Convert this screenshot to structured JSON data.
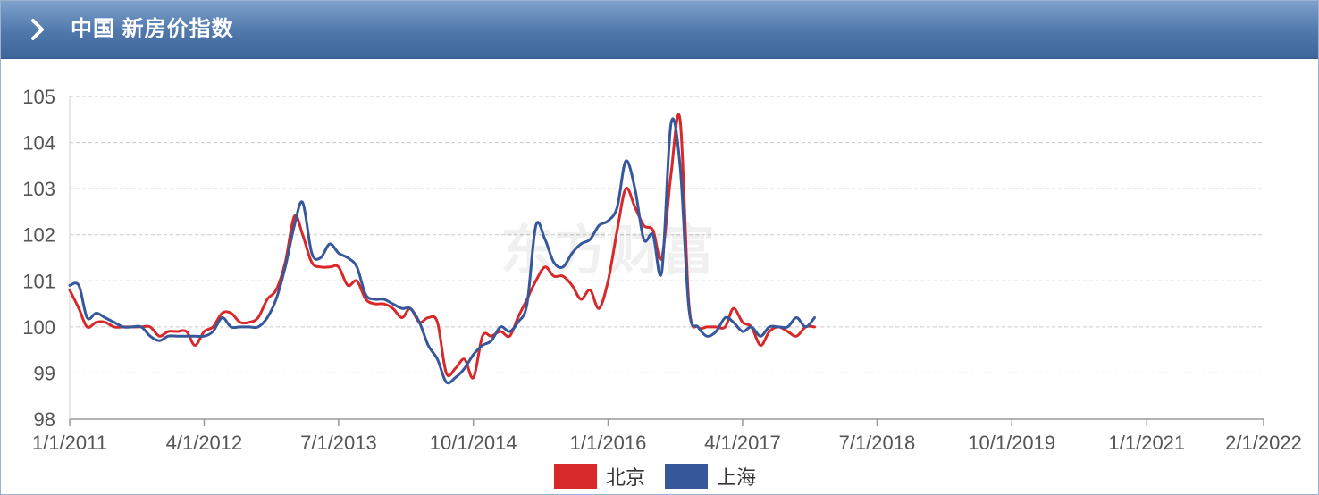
{
  "header": {
    "title": "中国 新房价指数"
  },
  "legend": [
    {
      "label": "北京",
      "color": "#d7282a"
    },
    {
      "label": "上海",
      "color": "#36589b"
    }
  ],
  "watermark": "东方财富",
  "chart_data": {
    "type": "line",
    "title": "中国 新房价指数",
    "xlabel": "",
    "ylabel": "",
    "ylim": [
      98,
      105
    ],
    "yticks": [
      98,
      99,
      100,
      101,
      102,
      103,
      104,
      105
    ],
    "xlim": [
      "2011-01-01",
      "2022-02-01"
    ],
    "xticks": [
      "1/1/2011",
      "4/1/2012",
      "7/1/2013",
      "10/1/2014",
      "1/1/2016",
      "4/1/2017",
      "7/1/2018",
      "10/1/2019",
      "1/1/2021",
      "2/1/2022"
    ],
    "xtick_dates": [
      "2011-01-01",
      "2012-04-01",
      "2013-07-01",
      "2014-10-01",
      "2016-01-01",
      "2017-04-01",
      "2018-07-01",
      "2019-10-01",
      "2021-01-01",
      "2022-02-01"
    ],
    "grid": true,
    "legend_position": "bottom",
    "series": [
      {
        "name": "北京",
        "color": "#d7282a",
        "points": [
          [
            "2011-01-01",
            100.8
          ],
          [
            "2011-02-01",
            100.4
          ],
          [
            "2011-03-01",
            100.0
          ],
          [
            "2011-04-01",
            100.1
          ],
          [
            "2011-05-01",
            100.1
          ],
          [
            "2011-06-01",
            100.0
          ],
          [
            "2011-07-01",
            100.0
          ],
          [
            "2011-08-01",
            100.0
          ],
          [
            "2011-09-01",
            100.0
          ],
          [
            "2011-10-01",
            100.0
          ],
          [
            "2011-11-01",
            99.8
          ],
          [
            "2011-12-01",
            99.9
          ],
          [
            "2012-01-01",
            99.9
          ],
          [
            "2012-02-01",
            99.9
          ],
          [
            "2012-03-01",
            99.6
          ],
          [
            "2012-04-01",
            99.9
          ],
          [
            "2012-05-01",
            100.0
          ],
          [
            "2012-06-01",
            100.3
          ],
          [
            "2012-07-01",
            100.3
          ],
          [
            "2012-08-01",
            100.1
          ],
          [
            "2012-09-01",
            100.1
          ],
          [
            "2012-10-01",
            100.2
          ],
          [
            "2012-11-01",
            100.6
          ],
          [
            "2012-12-01",
            100.8
          ],
          [
            "2013-01-01",
            101.4
          ],
          [
            "2013-02-01",
            102.4
          ],
          [
            "2013-03-01",
            102.0
          ],
          [
            "2013-04-01",
            101.4
          ],
          [
            "2013-05-01",
            101.3
          ],
          [
            "2013-06-01",
            101.3
          ],
          [
            "2013-07-01",
            101.3
          ],
          [
            "2013-08-01",
            100.9
          ],
          [
            "2013-09-01",
            101.0
          ],
          [
            "2013-10-01",
            100.6
          ],
          [
            "2013-11-01",
            100.5
          ],
          [
            "2013-12-01",
            100.5
          ],
          [
            "2014-01-01",
            100.4
          ],
          [
            "2014-02-01",
            100.2
          ],
          [
            "2014-03-01",
            100.4
          ],
          [
            "2014-04-01",
            100.1
          ],
          [
            "2014-05-01",
            100.2
          ],
          [
            "2014-06-01",
            100.1
          ],
          [
            "2014-07-01",
            99.0
          ],
          [
            "2014-08-01",
            99.1
          ],
          [
            "2014-09-01",
            99.3
          ],
          [
            "2014-10-01",
            98.9
          ],
          [
            "2014-11-01",
            99.8
          ],
          [
            "2014-12-01",
            99.8
          ],
          [
            "2015-01-01",
            99.9
          ],
          [
            "2015-02-01",
            99.8
          ],
          [
            "2015-03-01",
            100.2
          ],
          [
            "2015-04-01",
            100.6
          ],
          [
            "2015-05-01",
            101.0
          ],
          [
            "2015-06-01",
            101.3
          ],
          [
            "2015-07-01",
            101.1
          ],
          [
            "2015-08-01",
            101.1
          ],
          [
            "2015-09-01",
            100.9
          ],
          [
            "2015-10-01",
            100.6
          ],
          [
            "2015-11-01",
            100.8
          ],
          [
            "2015-12-01",
            100.4
          ],
          [
            "2016-01-01",
            101.0
          ],
          [
            "2016-02-01",
            102.1
          ],
          [
            "2016-03-01",
            103.0
          ],
          [
            "2016-04-01",
            102.6
          ],
          [
            "2016-05-01",
            102.2
          ],
          [
            "2016-06-01",
            102.1
          ],
          [
            "2016-07-01",
            101.5
          ],
          [
            "2016-08-01",
            103.3
          ],
          [
            "2016-09-01",
            104.5
          ],
          [
            "2016-10-01",
            100.5
          ],
          [
            "2016-11-01",
            100.0
          ],
          [
            "2016-12-01",
            100.0
          ],
          [
            "2017-01-01",
            100.0
          ],
          [
            "2017-02-01",
            100.0
          ],
          [
            "2017-03-01",
            100.4
          ],
          [
            "2017-04-01",
            100.1
          ],
          [
            "2017-05-01",
            100.0
          ],
          [
            "2017-06-01",
            99.6
          ],
          [
            "2017-07-01",
            99.9
          ],
          [
            "2017-08-01",
            100.0
          ],
          [
            "2017-09-01",
            99.9
          ],
          [
            "2017-10-01",
            99.8
          ],
          [
            "2017-11-01",
            100.0
          ],
          [
            "2017-12-01",
            100.0
          ]
        ]
      },
      {
        "name": "上海",
        "color": "#36589b",
        "points": [
          [
            "2011-01-01",
            100.9
          ],
          [
            "2011-02-01",
            100.9
          ],
          [
            "2011-03-01",
            100.2
          ],
          [
            "2011-04-01",
            100.3
          ],
          [
            "2011-05-01",
            100.2
          ],
          [
            "2011-06-01",
            100.1
          ],
          [
            "2011-07-01",
            100.0
          ],
          [
            "2011-08-01",
            100.0
          ],
          [
            "2011-09-01",
            100.0
          ],
          [
            "2011-10-01",
            99.8
          ],
          [
            "2011-11-01",
            99.7
          ],
          [
            "2011-12-01",
            99.8
          ],
          [
            "2012-01-01",
            99.8
          ],
          [
            "2012-02-01",
            99.8
          ],
          [
            "2012-03-01",
            99.8
          ],
          [
            "2012-04-01",
            99.8
          ],
          [
            "2012-05-01",
            99.9
          ],
          [
            "2012-06-01",
            100.2
          ],
          [
            "2012-07-01",
            100.0
          ],
          [
            "2012-08-01",
            100.0
          ],
          [
            "2012-09-01",
            100.0
          ],
          [
            "2012-10-01",
            100.0
          ],
          [
            "2012-11-01",
            100.2
          ],
          [
            "2012-12-01",
            100.6
          ],
          [
            "2013-01-01",
            101.3
          ],
          [
            "2013-02-01",
            102.2
          ],
          [
            "2013-03-01",
            102.7
          ],
          [
            "2013-04-01",
            101.6
          ],
          [
            "2013-05-01",
            101.5
          ],
          [
            "2013-06-01",
            101.8
          ],
          [
            "2013-07-01",
            101.6
          ],
          [
            "2013-08-01",
            101.5
          ],
          [
            "2013-09-01",
            101.3
          ],
          [
            "2013-10-01",
            100.7
          ],
          [
            "2013-11-01",
            100.6
          ],
          [
            "2013-12-01",
            100.6
          ],
          [
            "2014-01-01",
            100.5
          ],
          [
            "2014-02-01",
            100.4
          ],
          [
            "2014-03-01",
            100.4
          ],
          [
            "2014-04-01",
            100.1
          ],
          [
            "2014-05-01",
            99.6
          ],
          [
            "2014-06-01",
            99.3
          ],
          [
            "2014-07-01",
            98.8
          ],
          [
            "2014-08-01",
            98.9
          ],
          [
            "2014-09-01",
            99.1
          ],
          [
            "2014-10-01",
            99.4
          ],
          [
            "2014-11-01",
            99.6
          ],
          [
            "2014-12-01",
            99.7
          ],
          [
            "2015-01-01",
            100.0
          ],
          [
            "2015-02-01",
            99.9
          ],
          [
            "2015-03-01",
            100.1
          ],
          [
            "2015-04-01",
            100.5
          ],
          [
            "2015-05-01",
            102.2
          ],
          [
            "2015-06-01",
            101.9
          ],
          [
            "2015-07-01",
            101.4
          ],
          [
            "2015-08-01",
            101.3
          ],
          [
            "2015-09-01",
            101.6
          ],
          [
            "2015-10-01",
            101.8
          ],
          [
            "2015-11-01",
            101.9
          ],
          [
            "2015-12-01",
            102.2
          ],
          [
            "2016-01-01",
            102.3
          ],
          [
            "2016-02-01",
            102.6
          ],
          [
            "2016-03-01",
            103.6
          ],
          [
            "2016-04-01",
            103.0
          ],
          [
            "2016-05-01",
            101.9
          ],
          [
            "2016-06-01",
            102.0
          ],
          [
            "2016-07-01",
            101.2
          ],
          [
            "2016-08-01",
            104.4
          ],
          [
            "2016-09-01",
            103.5
          ],
          [
            "2016-10-01",
            100.4
          ],
          [
            "2016-11-01",
            100.0
          ],
          [
            "2016-12-01",
            99.8
          ],
          [
            "2017-01-01",
            99.9
          ],
          [
            "2017-02-01",
            100.2
          ],
          [
            "2017-03-01",
            100.1
          ],
          [
            "2017-04-01",
            99.9
          ],
          [
            "2017-05-01",
            100.0
          ],
          [
            "2017-06-01",
            99.8
          ],
          [
            "2017-07-01",
            100.0
          ],
          [
            "2017-08-01",
            100.0
          ],
          [
            "2017-09-01",
            100.0
          ],
          [
            "2017-10-01",
            100.2
          ],
          [
            "2017-11-01",
            100.0
          ],
          [
            "2017-12-01",
            100.2
          ]
        ]
      }
    ]
  }
}
